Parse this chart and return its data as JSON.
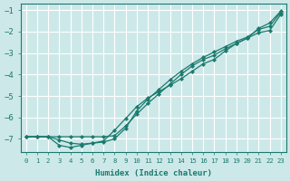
{
  "title": "",
  "xlabel": "Humidex (Indice chaleur)",
  "ylabel": "",
  "xlim": [
    -0.5,
    23.5
  ],
  "ylim": [
    -7.6,
    -0.7
  ],
  "xticks": [
    0,
    1,
    2,
    3,
    4,
    5,
    6,
    7,
    8,
    9,
    10,
    11,
    12,
    13,
    14,
    15,
    16,
    17,
    18,
    19,
    20,
    21,
    22,
    23
  ],
  "yticks": [
    -7,
    -6,
    -5,
    -4,
    -3,
    -2,
    -1
  ],
  "background_color": "#cde8e8",
  "grid_color": "#ffffff",
  "line_color": "#1a7a6e",
  "line1_x": [
    0,
    1,
    2,
    3,
    4,
    5,
    6,
    7,
    8,
    9,
    10,
    11,
    12,
    13,
    14,
    15,
    16,
    17,
    18,
    19,
    20,
    21,
    22,
    23
  ],
  "line1_y": [
    -6.9,
    -6.9,
    -6.9,
    -6.9,
    -6.9,
    -6.9,
    -6.9,
    -6.9,
    -6.85,
    -6.4,
    -5.85,
    -5.35,
    -4.9,
    -4.45,
    -4.0,
    -3.6,
    -3.3,
    -3.1,
    -2.8,
    -2.55,
    -2.3,
    -1.85,
    -1.6,
    -1.05
  ],
  "line2_x": [
    0,
    1,
    2,
    3,
    4,
    5,
    6,
    7,
    8,
    9,
    10,
    11,
    12,
    13,
    14,
    15,
    16,
    17,
    18,
    19,
    20,
    21,
    22,
    23
  ],
  "line2_y": [
    -6.9,
    -6.9,
    -6.9,
    -7.05,
    -7.2,
    -7.25,
    -7.2,
    -7.15,
    -7.0,
    -6.5,
    -5.7,
    -5.15,
    -4.7,
    -4.25,
    -3.85,
    -3.5,
    -3.2,
    -2.95,
    -2.7,
    -2.45,
    -2.25,
    -1.9,
    -1.75,
    -1.1
  ],
  "line3_x": [
    0,
    1,
    2,
    3,
    4,
    5,
    6,
    7,
    8,
    9,
    10,
    11,
    12,
    13,
    14,
    15,
    16,
    17,
    18,
    19,
    20,
    21,
    22,
    23
  ],
  "line3_y": [
    -6.9,
    -6.9,
    -6.9,
    -7.3,
    -7.4,
    -7.3,
    -7.2,
    -7.1,
    -6.6,
    -6.05,
    -5.5,
    -5.1,
    -4.8,
    -4.5,
    -4.2,
    -3.85,
    -3.5,
    -3.3,
    -2.9,
    -2.55,
    -2.3,
    -2.05,
    -1.95,
    -1.2
  ]
}
